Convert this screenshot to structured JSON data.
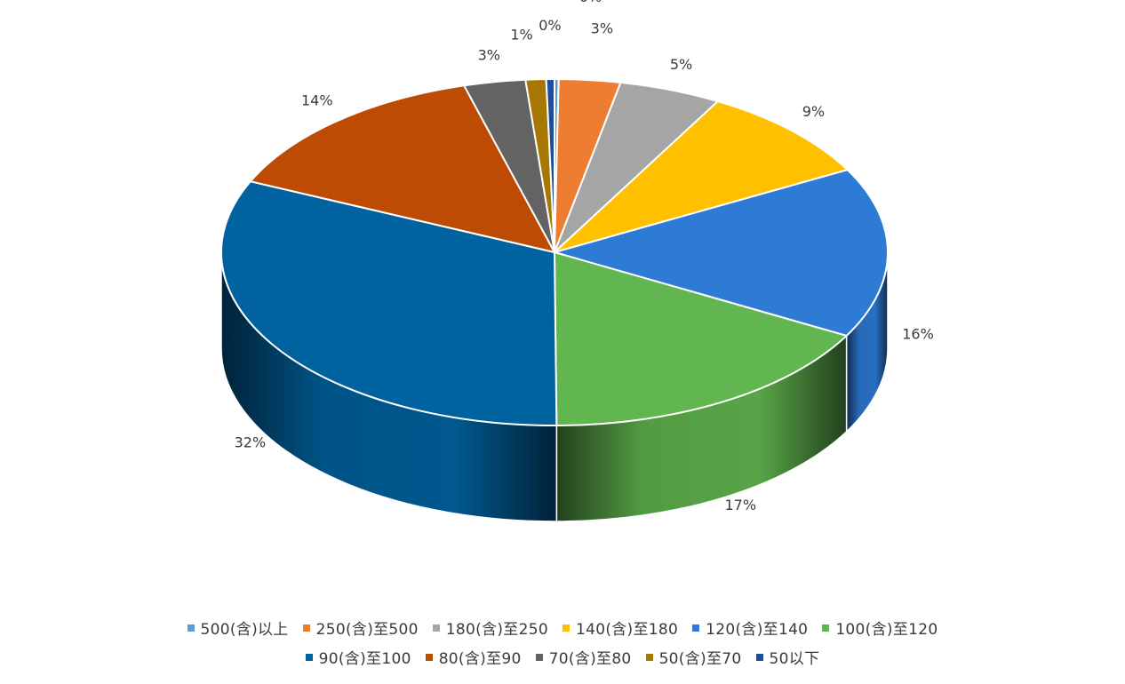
{
  "chart_data": {
    "type": "pie",
    "style": "3d-pie",
    "title": "",
    "legend_position": "bottom",
    "categories": [
      "500(含)以上",
      "250(含)至500",
      "180(含)至250",
      "140(含)至180",
      "120(含)至140",
      "100(含)至120",
      "90(含)至100",
      "80(含)至90",
      "70(含)至80",
      "50(含)至70",
      "50以下"
    ],
    "values": [
      0.2,
      3,
      5,
      9,
      16,
      17,
      32,
      14,
      3,
      1,
      0.4
    ],
    "labels": [
      "0%",
      "3%",
      "5%",
      "9%",
      "16%",
      "17%",
      "32%",
      "14%",
      "3%",
      "1%",
      "0%"
    ],
    "colors": [
      "#5B9BD5",
      "#ED7D31",
      "#A5A5A5",
      "#FFC000",
      "#2E7BD6",
      "#62B64F",
      "#00629E",
      "#BD4B03",
      "#636363",
      "#A77704",
      "#1F4E99"
    ]
  }
}
